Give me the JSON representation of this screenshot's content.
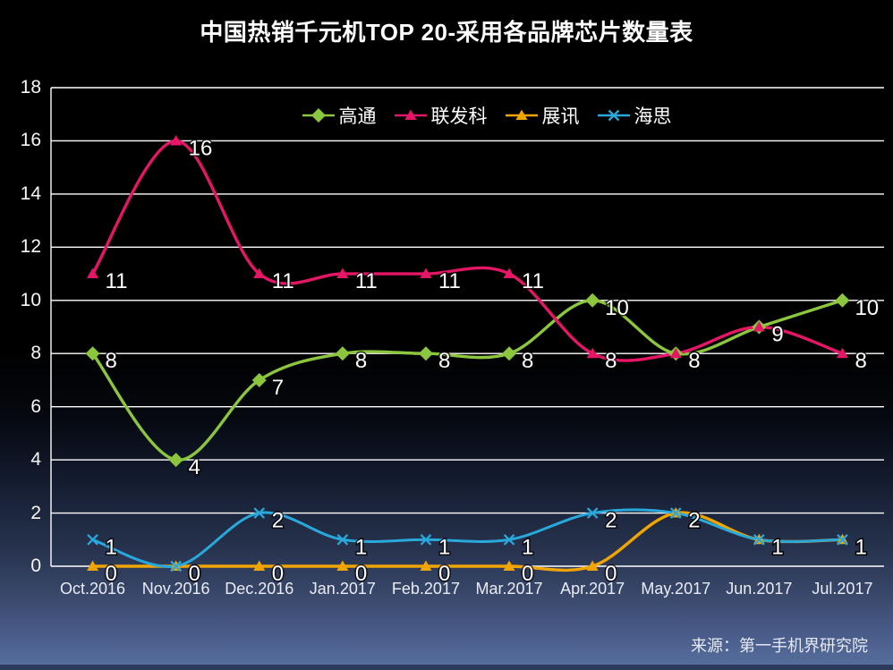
{
  "title": "中国热销千元机TOP 20-采用各品牌芯片数量表",
  "source": "来源：第一手机界研究院",
  "chart_data": {
    "type": "line",
    "smooth": true,
    "title": "中国热销千元机TOP 20-采用各品牌芯片数量表",
    "categories": [
      "Oct.2016",
      "Nov.2016",
      "Dec.2016",
      "Jan.2017",
      "Feb.2017",
      "Mar.2017",
      "Apr.2017",
      "May.2017",
      "Jun.2017",
      "Jul.2017"
    ],
    "series": [
      {
        "name": "高通",
        "color": "#8CC63F",
        "marker": "diamond",
        "values": [
          8,
          4,
          7,
          8,
          8,
          8,
          10,
          8,
          9,
          10
        ]
      },
      {
        "name": "联发科",
        "color": "#E61667",
        "marker": "triangle",
        "values": [
          11,
          16,
          11,
          11,
          11,
          11,
          8,
          8,
          9,
          8
        ]
      },
      {
        "name": "展讯",
        "color": "#F0A502",
        "marker": "triangle",
        "values": [
          0,
          0,
          0,
          0,
          0,
          0,
          0,
          2,
          1,
          1
        ]
      },
      {
        "name": "海思",
        "color": "#29A8DC",
        "marker": "x",
        "values": [
          1,
          0,
          2,
          1,
          1,
          1,
          2,
          2,
          1,
          1
        ]
      }
    ],
    "ylim": [
      0,
      18
    ],
    "yticks": [
      0,
      2,
      4,
      6,
      8,
      10,
      12,
      14,
      16,
      18
    ],
    "grid": "horizontal",
    "legend_position": "top",
    "background": {
      "top": "#000000",
      "bottom": "#58719F"
    },
    "gridline_color": "#FFFFFF",
    "data_labels": true
  }
}
